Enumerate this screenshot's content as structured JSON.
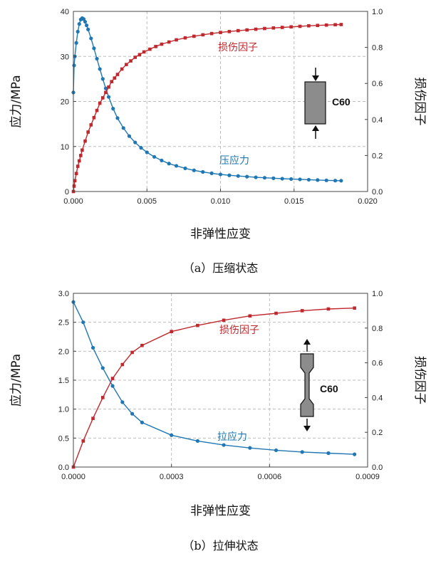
{
  "chart_data": [
    {
      "type": "line",
      "xlabel": "非弹性应变",
      "ylabel": "应力/MPa",
      "y2label": "损伤因子",
      "caption": "（a）压缩状态",
      "xlim": [
        0,
        0.02
      ],
      "ylim": [
        0,
        40
      ],
      "y2lim": [
        0,
        1.0
      ],
      "xticks": [
        "0.000",
        "0.005",
        "0.010",
        "0.015",
        "0.020"
      ],
      "yticks": [
        "0",
        "10",
        "20",
        "30",
        "40"
      ],
      "y2ticks": [
        "0.0",
        "0.2",
        "0.4",
        "0.6",
        "0.8",
        "1.0"
      ],
      "grid": true,
      "specimen": "C60",
      "specimen_state": "compression",
      "series": [
        {
          "name": "压应力",
          "axis": "left",
          "color": "#1f77b4",
          "x": [
            0,
            5e-05,
            0.0001,
            0.0002,
            0.0003,
            0.0004,
            0.0005,
            0.0006,
            0.0007,
            0.0008,
            0.0009,
            0.001,
            0.0012,
            0.0014,
            0.0016,
            0.0018,
            0.002,
            0.0022,
            0.0024,
            0.0027,
            0.003,
            0.0034,
            0.0038,
            0.0042,
            0.0046,
            0.005,
            0.0055,
            0.006,
            0.0065,
            0.007,
            0.0076,
            0.0082,
            0.0088,
            0.0094,
            0.01,
            0.0106,
            0.0112,
            0.0118,
            0.0124,
            0.013,
            0.0136,
            0.0142,
            0.0148,
            0.0154,
            0.016,
            0.0166,
            0.0172,
            0.0178,
            0.0182
          ],
          "y": [
            22.0,
            28.0,
            30.0,
            33.0,
            35.5,
            37.2,
            38.2,
            38.5,
            38.3,
            37.7,
            36.9,
            36.0,
            34.0,
            31.8,
            29.5,
            27.2,
            25.0,
            22.9,
            21.0,
            18.4,
            16.3,
            14.1,
            12.3,
            10.9,
            9.7,
            8.7,
            7.7,
            6.9,
            6.2,
            5.7,
            5.15,
            4.7,
            4.35,
            4.05,
            3.8,
            3.6,
            3.45,
            3.3,
            3.15,
            3.05,
            2.95,
            2.85,
            2.78,
            2.7,
            2.62,
            2.55,
            2.48,
            2.42,
            2.4
          ]
        },
        {
          "name": "损伤因子",
          "axis": "right",
          "color": "#c0282d",
          "x": [
            0,
            5e-05,
            0.0001,
            0.0002,
            0.0003,
            0.0004,
            0.0005,
            0.0006,
            0.0008,
            0.001,
            0.0012,
            0.0014,
            0.0016,
            0.0018,
            0.002,
            0.0022,
            0.0024,
            0.0026,
            0.0028,
            0.003,
            0.0033,
            0.0036,
            0.0039,
            0.0042,
            0.0045,
            0.0048,
            0.0052,
            0.0056,
            0.006,
            0.0065,
            0.007,
            0.0076,
            0.0082,
            0.0088,
            0.0094,
            0.01,
            0.0106,
            0.0112,
            0.0118,
            0.0124,
            0.013,
            0.0136,
            0.0142,
            0.0148,
            0.0154,
            0.016,
            0.0166,
            0.0172,
            0.0178,
            0.0182
          ],
          "y": [
            0.0,
            0.03,
            0.06,
            0.1,
            0.14,
            0.17,
            0.2,
            0.23,
            0.28,
            0.33,
            0.37,
            0.41,
            0.45,
            0.49,
            0.52,
            0.55,
            0.58,
            0.61,
            0.63,
            0.65,
            0.68,
            0.705,
            0.725,
            0.745,
            0.76,
            0.775,
            0.79,
            0.805,
            0.818,
            0.83,
            0.842,
            0.853,
            0.862,
            0.87,
            0.877,
            0.883,
            0.888,
            0.893,
            0.897,
            0.901,
            0.905,
            0.908,
            0.911,
            0.914,
            0.917,
            0.92,
            0.922,
            0.924,
            0.926,
            0.927
          ]
        }
      ]
    },
    {
      "type": "line",
      "xlabel": "非弹性应变",
      "ylabel": "应力/MPa",
      "y2label": "损伤因子",
      "caption": "（b）拉伸状态",
      "xlim": [
        0,
        0.0009
      ],
      "ylim": [
        0,
        3.0
      ],
      "y2lim": [
        0,
        1.0
      ],
      "xticks": [
        "0.0000",
        "0.0003",
        "0.0006",
        "0.0009"
      ],
      "yticks": [
        "0.0",
        "0.5",
        "1.0",
        "1.5",
        "2.0",
        "2.5",
        "3.0"
      ],
      "y2ticks": [
        "0.0",
        "0.2",
        "0.4",
        "0.6",
        "0.8",
        "1.0"
      ],
      "grid": true,
      "specimen": "C60",
      "specimen_state": "tension",
      "series": [
        {
          "name": "拉应力",
          "axis": "left",
          "color": "#1f77b4",
          "x": [
            0,
            3e-05,
            6e-05,
            9e-05,
            0.00012,
            0.00015,
            0.00018,
            0.00021,
            0.0003,
            0.00038,
            0.00046,
            0.00054,
            0.00062,
            0.0007,
            0.00078,
            0.00086
          ],
          "y": [
            2.85,
            2.5,
            2.06,
            1.71,
            1.4,
            1.12,
            0.92,
            0.77,
            0.55,
            0.45,
            0.38,
            0.33,
            0.29,
            0.26,
            0.24,
            0.22
          ]
        },
        {
          "name": "损伤因子",
          "axis": "right",
          "color": "#c0282d",
          "x": [
            0,
            3e-05,
            6e-05,
            9e-05,
            0.00012,
            0.00015,
            0.00018,
            0.00021,
            0.0003,
            0.00038,
            0.00046,
            0.00054,
            0.00062,
            0.0007,
            0.00078,
            0.00086
          ],
          "y": [
            0.0,
            0.15,
            0.28,
            0.4,
            0.51,
            0.59,
            0.66,
            0.7,
            0.78,
            0.815,
            0.845,
            0.87,
            0.885,
            0.9,
            0.91,
            0.915
          ]
        }
      ]
    }
  ]
}
